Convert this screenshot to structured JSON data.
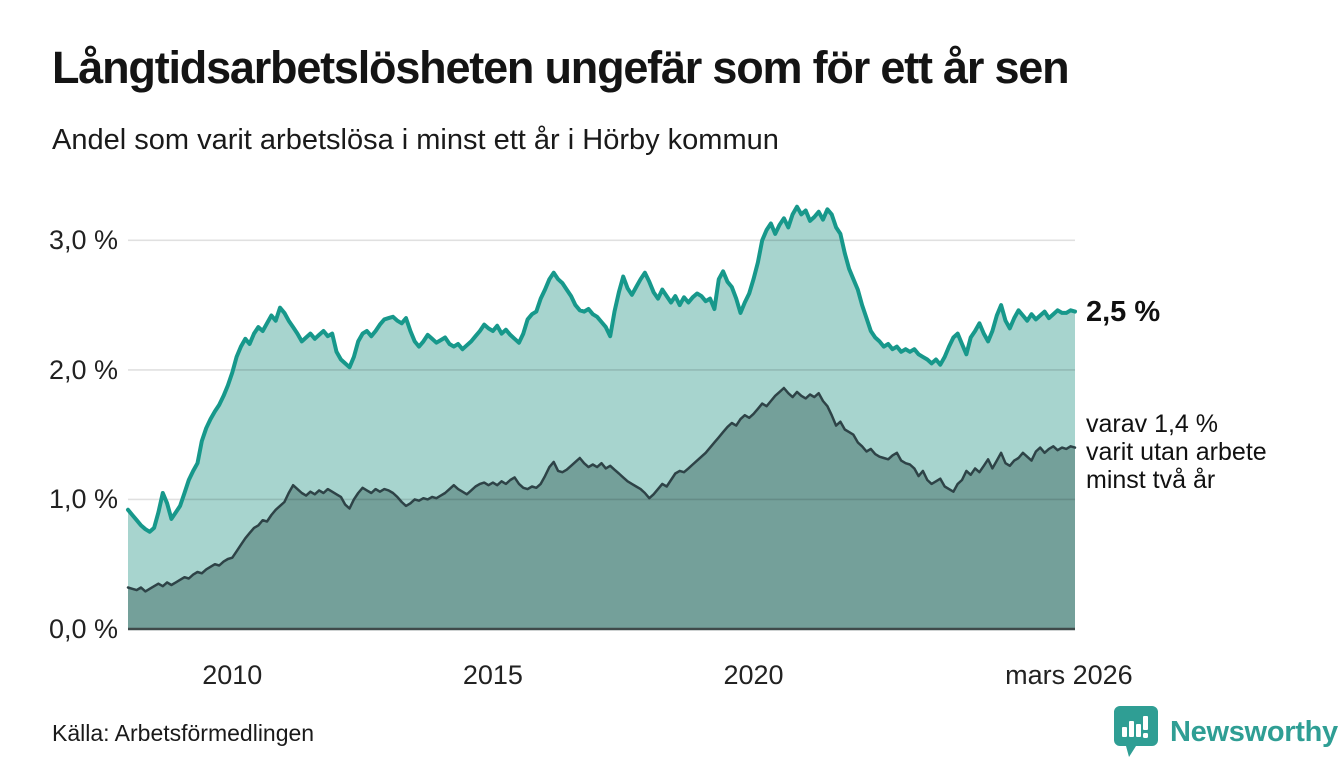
{
  "header": {
    "title": "Långtidsarbetslösheten ungefär som för ett år sen",
    "subtitle": "Andel som varit arbetslösa i minst ett år i Hörby kommun"
  },
  "annotations": {
    "series1_end_value": "2,5 %",
    "series2_lines": [
      "varav 1,4 %",
      "varit utan arbete",
      "minst två år"
    ]
  },
  "footer": {
    "source": "Källa: Arbetsförmedlingen",
    "brand": "Newsworthy"
  },
  "colors": {
    "accent_teal": "#17988b",
    "light_fill": "#a7d4ce",
    "dark_line": "#2e4347",
    "dark_fill": "#74a09a",
    "grid_overlay": "rgba(0,0,0,0.12)",
    "baseline": "#3f4a4a",
    "brand_teal": "#2f9e94"
  },
  "chart_data": {
    "type": "area",
    "title": "Långtidsarbetslösheten ungefär som för ett år sen",
    "subtitle": "Andel som varit arbetslösa i minst ett år i Hörby kommun",
    "xlabel": "",
    "ylabel": "",
    "xlim": [
      2008.0,
      2026.167
    ],
    "ylim": [
      0,
      3.35
    ],
    "grid": true,
    "legend_position": "none",
    "points_per_year": 12,
    "x_ticks": [
      {
        "value": 2010,
        "label": "2010"
      },
      {
        "value": 2015,
        "label": "2015"
      },
      {
        "value": 2020,
        "label": "2020"
      },
      {
        "value": 2026.05,
        "label": "mars 2026"
      }
    ],
    "y_ticks": [
      {
        "value": 0,
        "label": "0,0 %"
      },
      {
        "value": 1,
        "label": "1,0 %"
      },
      {
        "value": 2,
        "label": "2,0 %"
      },
      {
        "value": 3,
        "label": "3,0 %"
      }
    ],
    "series": [
      {
        "name": "Andel som varit arbetslösa i minst ett år",
        "end_label": "2,5 %",
        "line_color": "#17988b",
        "fill_color": "#a7d4ce",
        "line_width": 4,
        "x_start": 2008.0,
        "values": [
          0.92,
          0.88,
          0.84,
          0.8,
          0.77,
          0.75,
          0.78,
          0.9,
          1.05,
          0.97,
          0.85,
          0.9,
          0.95,
          1.05,
          1.15,
          1.22,
          1.28,
          1.45,
          1.55,
          1.62,
          1.68,
          1.73,
          1.8,
          1.88,
          1.98,
          2.1,
          2.18,
          2.24,
          2.2,
          2.28,
          2.33,
          2.3,
          2.36,
          2.42,
          2.38,
          2.48,
          2.44,
          2.38,
          2.33,
          2.28,
          2.22,
          2.25,
          2.28,
          2.24,
          2.27,
          2.3,
          2.26,
          2.28,
          2.14,
          2.08,
          2.05,
          2.02,
          2.1,
          2.22,
          2.28,
          2.3,
          2.26,
          2.3,
          2.35,
          2.39,
          2.4,
          2.41,
          2.38,
          2.36,
          2.4,
          2.3,
          2.22,
          2.18,
          2.22,
          2.27,
          2.24,
          2.21,
          2.23,
          2.25,
          2.2,
          2.18,
          2.2,
          2.16,
          2.19,
          2.22,
          2.26,
          2.3,
          2.35,
          2.32,
          2.3,
          2.34,
          2.28,
          2.31,
          2.27,
          2.24,
          2.21,
          2.28,
          2.39,
          2.43,
          2.45,
          2.55,
          2.62,
          2.7,
          2.75,
          2.7,
          2.67,
          2.62,
          2.57,
          2.5,
          2.46,
          2.45,
          2.47,
          2.43,
          2.41,
          2.37,
          2.33,
          2.26,
          2.45,
          2.6,
          2.72,
          2.63,
          2.58,
          2.64,
          2.7,
          2.75,
          2.68,
          2.6,
          2.55,
          2.62,
          2.57,
          2.52,
          2.57,
          2.5,
          2.56,
          2.52,
          2.56,
          2.59,
          2.57,
          2.53,
          2.55,
          2.47,
          2.7,
          2.76,
          2.68,
          2.64,
          2.55,
          2.44,
          2.52,
          2.59,
          2.7,
          2.83,
          3.0,
          3.08,
          3.13,
          3.05,
          3.12,
          3.17,
          3.1,
          3.2,
          3.26,
          3.2,
          3.23,
          3.15,
          3.18,
          3.22,
          3.16,
          3.24,
          3.2,
          3.1,
          3.05,
          2.9,
          2.78,
          2.7,
          2.62,
          2.5,
          2.4,
          2.3,
          2.25,
          2.22,
          2.18,
          2.2,
          2.16,
          2.18,
          2.14,
          2.16,
          2.14,
          2.16,
          2.12,
          2.1,
          2.08,
          2.05,
          2.08,
          2.04,
          2.1,
          2.18,
          2.25,
          2.28,
          2.2,
          2.12,
          2.25,
          2.3,
          2.36,
          2.28,
          2.22,
          2.3,
          2.42,
          2.5,
          2.38,
          2.32,
          2.4,
          2.46,
          2.42,
          2.38,
          2.43,
          2.39,
          2.42,
          2.45,
          2.4,
          2.43,
          2.46,
          2.44,
          2.44,
          2.46,
          2.45
        ]
      },
      {
        "name": "varav utan arbete minst två år",
        "end_label": "varav 1,4 % varit utan arbete minst två år",
        "line_color": "#2e4347",
        "fill_color": "#74a09a",
        "line_width": 2.5,
        "x_start": 2008.0,
        "values": [
          0.32,
          0.31,
          0.3,
          0.32,
          0.29,
          0.31,
          0.33,
          0.35,
          0.33,
          0.36,
          0.34,
          0.36,
          0.38,
          0.4,
          0.39,
          0.42,
          0.44,
          0.43,
          0.46,
          0.48,
          0.5,
          0.49,
          0.52,
          0.54,
          0.55,
          0.6,
          0.65,
          0.7,
          0.74,
          0.78,
          0.8,
          0.84,
          0.83,
          0.88,
          0.92,
          0.95,
          0.98,
          1.05,
          1.11,
          1.08,
          1.05,
          1.03,
          1.06,
          1.04,
          1.07,
          1.05,
          1.08,
          1.06,
          1.04,
          1.02,
          0.96,
          0.93,
          1.0,
          1.05,
          1.09,
          1.07,
          1.05,
          1.08,
          1.06,
          1.08,
          1.07,
          1.05,
          1.02,
          0.98,
          0.95,
          0.97,
          1.0,
          0.99,
          1.01,
          1.0,
          1.02,
          1.01,
          1.03,
          1.05,
          1.08,
          1.11,
          1.08,
          1.06,
          1.04,
          1.07,
          1.1,
          1.12,
          1.13,
          1.11,
          1.13,
          1.11,
          1.14,
          1.12,
          1.15,
          1.17,
          1.12,
          1.09,
          1.08,
          1.1,
          1.09,
          1.12,
          1.18,
          1.25,
          1.29,
          1.22,
          1.21,
          1.23,
          1.26,
          1.29,
          1.32,
          1.28,
          1.25,
          1.27,
          1.25,
          1.28,
          1.24,
          1.26,
          1.23,
          1.2,
          1.17,
          1.14,
          1.12,
          1.1,
          1.08,
          1.05,
          1.01,
          1.04,
          1.08,
          1.12,
          1.1,
          1.15,
          1.2,
          1.22,
          1.21,
          1.24,
          1.27,
          1.3,
          1.33,
          1.36,
          1.4,
          1.44,
          1.48,
          1.52,
          1.56,
          1.59,
          1.57,
          1.62,
          1.65,
          1.63,
          1.66,
          1.7,
          1.74,
          1.72,
          1.76,
          1.8,
          1.83,
          1.86,
          1.82,
          1.79,
          1.83,
          1.8,
          1.78,
          1.81,
          1.79,
          1.82,
          1.76,
          1.72,
          1.65,
          1.57,
          1.6,
          1.54,
          1.52,
          1.5,
          1.44,
          1.41,
          1.37,
          1.39,
          1.35,
          1.33,
          1.32,
          1.31,
          1.34,
          1.36,
          1.3,
          1.28,
          1.27,
          1.24,
          1.18,
          1.22,
          1.15,
          1.12,
          1.14,
          1.16,
          1.1,
          1.08,
          1.06,
          1.12,
          1.15,
          1.22,
          1.19,
          1.24,
          1.21,
          1.26,
          1.31,
          1.24,
          1.3,
          1.36,
          1.28,
          1.26,
          1.3,
          1.32,
          1.36,
          1.33,
          1.3,
          1.37,
          1.4,
          1.36,
          1.39,
          1.41,
          1.38,
          1.4,
          1.39,
          1.41,
          1.4
        ]
      }
    ]
  }
}
